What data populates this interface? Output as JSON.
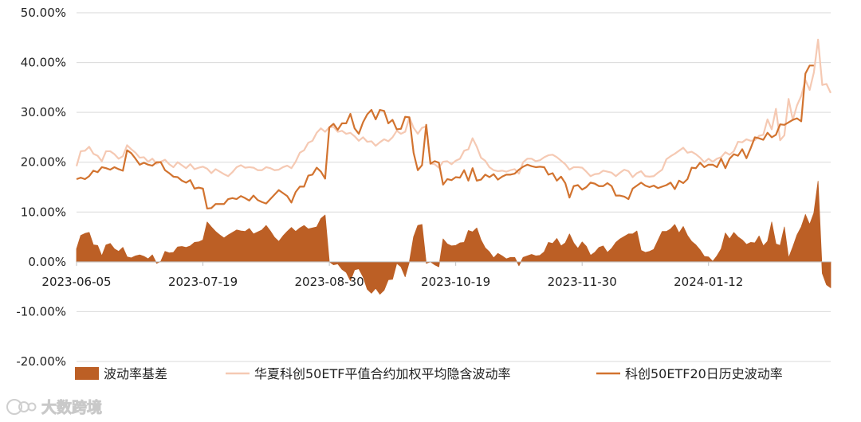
{
  "chart_data": {
    "type": "line",
    "title": "",
    "xlabel": "",
    "ylabel": "",
    "ylim": [
      -20,
      50
    ],
    "y_tick_labels": [
      "50.00%",
      "40.00%",
      "30.00%",
      "20.00%",
      "10.00%",
      "0.00%",
      "-10.00%",
      "-20.00%"
    ],
    "x_tick_labels": [
      "2023-06-05",
      "2023-07-19",
      "2023-08-30",
      "2023-10-19",
      "2023-11-30",
      "2024-01-12"
    ],
    "x_tick_indices": [
      0,
      30,
      60,
      90,
      120,
      150
    ],
    "grid": true,
    "legend_position": "bottom",
    "series": [
      {
        "name": "波动率基差",
        "kind": "area",
        "color": "#bc5f25",
        "values": [
          2.6,
          5.3,
          5.7,
          5.9,
          3.4,
          3.3,
          1.2,
          3.4,
          3.7,
          2.6,
          2.1,
          2.9,
          1.0,
          0.8,
          1.2,
          1.4,
          1.1,
          0.6,
          1.4,
          -0.3,
          0.1,
          2.1,
          1.8,
          1.9,
          3.0,
          3.1,
          2.9,
          3.2,
          3.9,
          4.0,
          4.4,
          8.0,
          7.0,
          6.1,
          5.4,
          4.8,
          5.4,
          5.9,
          6.4,
          6.2,
          6.1,
          6.7,
          5.6,
          6.0,
          6.4,
          7.3,
          6.2,
          4.9,
          4.1,
          5.2,
          6.1,
          6.9,
          6.1,
          6.8,
          7.3,
          6.6,
          6.8,
          7.0,
          8.7,
          9.4,
          0.0,
          -0.6,
          -0.4,
          -1.5,
          -2.1,
          -3.8,
          -1.6,
          -1.4,
          -3.0,
          -5.5,
          -6.3,
          -5.3,
          -6.5,
          -5.7,
          -3.6,
          -3.5,
          -0.3,
          -1.0,
          -3.0,
          0.0,
          5.0,
          7.3,
          7.5,
          -0.3,
          0.0,
          -0.6,
          -1.0,
          4.6,
          3.6,
          3.2,
          3.3,
          3.8,
          3.9,
          6.3,
          6.0,
          6.8,
          4.4,
          2.8,
          2.0,
          0.8,
          1.7,
          1.2,
          0.6,
          0.9,
          0.9,
          -0.8,
          0.9,
          1.2,
          1.5,
          1.2,
          1.3,
          2.0,
          3.9,
          3.7,
          4.7,
          3.2,
          3.8,
          5.6,
          3.8,
          2.7,
          4.0,
          3.1,
          1.3,
          1.9,
          2.9,
          3.2,
          1.9,
          2.7,
          3.9,
          4.6,
          5.1,
          5.6,
          5.6,
          6.2,
          2.3,
          1.9,
          2.1,
          2.5,
          4.3,
          6.1,
          6.1,
          6.6,
          7.5,
          5.8,
          7.1,
          5.3,
          4.1,
          3.4,
          2.4,
          1.1,
          1.0,
          0.1,
          1.2,
          2.6,
          5.8,
          4.6,
          5.9,
          5.0,
          4.4,
          3.5,
          3.9,
          3.8,
          5.2,
          3.2,
          4.1,
          8.0,
          3.6,
          3.3,
          7.0,
          0.8,
          3.0,
          5.4,
          7.0,
          9.5,
          7.5,
          9.8,
          16.2,
          -2.3,
          -4.6,
          -5.2
        ]
      },
      {
        "name": "华夏科创50ETF平值合约加权平均隐含波动率",
        "kind": "line",
        "color": "#f5c9b3",
        "values": [
          19.2,
          22.2,
          22.3,
          23.1,
          21.7,
          21.3,
          20.2,
          22.2,
          22.2,
          21.6,
          20.7,
          21.2,
          23.4,
          22.6,
          21.9,
          20.9,
          21.0,
          20.1,
          20.7,
          19.7,
          20.1,
          20.5,
          19.6,
          19.0,
          20.0,
          19.4,
          18.8,
          19.6,
          18.6,
          18.9,
          19.1,
          18.7,
          17.8,
          18.6,
          18.1,
          17.6,
          17.2,
          18.0,
          19.0,
          19.4,
          18.9,
          19.0,
          18.9,
          18.4,
          18.4,
          19.0,
          18.8,
          18.4,
          18.5,
          19.0,
          19.3,
          18.8,
          20.1,
          21.9,
          22.4,
          23.9,
          24.3,
          25.9,
          26.8,
          26.1,
          27.0,
          27.1,
          26.1,
          26.3,
          25.7,
          25.9,
          25.2,
          24.3,
          25.0,
          24.1,
          24.2,
          23.3,
          24.0,
          24.6,
          24.2,
          25.0,
          26.3,
          25.7,
          26.1,
          29.0,
          26.9,
          25.7,
          26.9,
          27.2,
          19.7,
          19.6,
          18.9,
          20.1,
          20.2,
          19.6,
          20.3,
          20.7,
          22.3,
          22.6,
          24.8,
          23.1,
          20.9,
          20.3,
          19.0,
          18.4,
          18.2,
          18.3,
          18.1,
          18.4,
          18.6,
          17.7,
          20.0,
          20.7,
          20.7,
          20.2,
          20.4,
          21.0,
          21.4,
          21.5,
          21.0,
          20.3,
          19.6,
          18.5,
          19.0,
          19.0,
          18.9,
          18.1,
          17.2,
          17.6,
          17.7,
          18.3,
          18.1,
          17.9,
          17.2,
          17.9,
          18.5,
          18.2,
          17.0,
          17.8,
          18.2,
          17.2,
          17.1,
          17.2,
          17.9,
          18.5,
          20.6,
          21.2,
          21.7,
          22.3,
          22.9,
          21.9,
          22.1,
          21.6,
          20.9,
          20.0,
          20.7,
          20.1,
          20.7,
          21.0,
          22.0,
          21.5,
          22.2,
          24.1,
          24.0,
          24.6,
          24.3,
          24.4,
          25.3,
          25.5,
          28.6,
          26.6,
          30.7,
          24.4,
          25.4,
          32.7,
          28.5,
          31.4,
          33.3,
          36.5,
          34.5,
          38.0,
          44.6,
          35.5,
          35.7,
          33.9
        ]
      },
      {
        "name": "科创50ETF20日历史波动率",
        "kind": "line",
        "color": "#d2732f",
        "values": [
          16.6,
          16.9,
          16.6,
          17.2,
          18.3,
          18.0,
          19.0,
          18.8,
          18.5,
          19.0,
          18.6,
          18.3,
          22.4,
          21.8,
          20.7,
          19.5,
          19.9,
          19.5,
          19.3,
          20.0,
          20.0,
          18.4,
          17.8,
          17.1,
          17.0,
          16.3,
          15.9,
          16.4,
          14.7,
          14.9,
          14.7,
          10.7,
          10.8,
          11.6,
          11.6,
          11.6,
          12.6,
          12.8,
          12.6,
          13.2,
          12.8,
          12.3,
          13.3,
          12.4,
          12.0,
          11.7,
          12.6,
          13.5,
          14.4,
          13.8,
          13.2,
          11.9,
          14.0,
          15.1,
          15.1,
          17.3,
          17.5,
          18.9,
          18.1,
          16.7,
          27.0,
          27.7,
          26.5,
          27.8,
          27.8,
          29.7,
          26.8,
          25.7,
          28.0,
          29.6,
          30.5,
          28.6,
          30.5,
          30.3,
          27.8,
          28.5,
          26.6,
          26.7,
          29.1,
          29.0,
          21.9,
          18.4,
          19.4,
          27.5,
          19.7,
          20.2,
          19.9,
          15.5,
          16.6,
          16.4,
          17.0,
          16.9,
          18.4,
          16.3,
          18.8,
          16.3,
          16.5,
          17.5,
          17.0,
          17.6,
          16.5,
          17.1,
          17.5,
          17.5,
          17.7,
          18.5,
          19.1,
          19.5,
          19.2,
          19.0,
          19.1,
          19.0,
          17.5,
          17.8,
          16.3,
          17.1,
          15.8,
          12.9,
          15.2,
          15.4,
          14.5,
          15.0,
          15.9,
          15.7,
          15.2,
          15.2,
          15.8,
          15.2,
          13.3,
          13.3,
          13.1,
          12.6,
          14.7,
          15.3,
          15.9,
          15.3,
          15.0,
          15.3,
          14.8,
          15.1,
          15.4,
          15.9,
          14.6,
          16.3,
          15.8,
          16.6,
          18.9,
          18.8,
          19.9,
          19.0,
          19.5,
          19.5,
          19.0,
          20.7,
          18.8,
          20.7,
          21.6,
          21.3,
          22.6,
          20.8,
          22.8,
          25.0,
          24.8,
          24.5,
          25.9,
          25.0,
          25.5,
          27.6,
          27.5,
          28.0,
          28.5,
          28.8,
          28.2,
          37.8,
          39.4,
          39.4
        ]
      }
    ]
  },
  "watermark": {
    "text": "大数跨境"
  }
}
